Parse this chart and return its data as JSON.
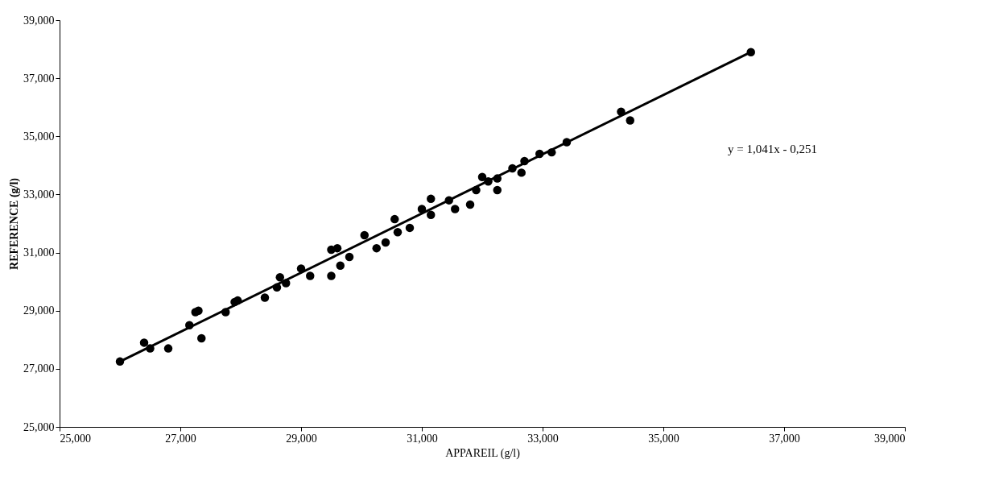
{
  "chart_data": {
    "type": "scatter",
    "xlabel": "APPAREIL (g/l)",
    "ylabel": "REFERENCE (g/l)",
    "annotations": [
      "y = 1,041x - 0,251"
    ],
    "xlim": [
      25000,
      39000
    ],
    "xticks": [
      {
        "value": 25000,
        "label": "25,000"
      },
      {
        "value": 27000,
        "label": "27,000"
      },
      {
        "value": 29000,
        "label": "29,000"
      },
      {
        "value": 31000,
        "label": "31,000"
      },
      {
        "value": 33000,
        "label": "33,000"
      },
      {
        "value": 35000,
        "label": "35,000"
      },
      {
        "value": 37000,
        "label": "37,000"
      },
      {
        "value": 39000,
        "label": "39,000"
      }
    ],
    "ylim": [
      25000,
      39000
    ],
    "yticks": [
      {
        "value": 25000,
        "label": "25,000"
      },
      {
        "value": 27000,
        "label": "27,000"
      },
      {
        "value": 29000,
        "label": "29,000"
      },
      {
        "value": 31000,
        "label": "31,000"
      },
      {
        "value": 33000,
        "label": "33,000"
      },
      {
        "value": 35000,
        "label": "35,000"
      },
      {
        "value": 37000,
        "label": "37,000"
      },
      {
        "value": 39000,
        "label": "39,000"
      }
    ],
    "grid": false,
    "x": [
      26000,
      26400,
      26500,
      26800,
      27150,
      27250,
      27300,
      27350,
      27750,
      27900,
      27950,
      28400,
      28600,
      28750,
      28650,
      29000,
      29150,
      29500,
      29650,
      29800,
      29500,
      29600,
      30050,
      30250,
      30400,
      30550,
      30600,
      30800,
      31000,
      31150,
      31150,
      31450,
      31550,
      31800,
      31900,
      32000,
      32100,
      32250,
      32250,
      32500,
      32650,
      32700,
      32950,
      33150,
      33400,
      34300,
      34450,
      36450
    ],
    "series": [
      {
        "color": "#000000",
        "marker": "circle",
        "values": [
          27250,
          27900,
          27700,
          27700,
          28500,
          28950,
          29000,
          28050,
          28950,
          29300,
          29350,
          29450,
          29800,
          29950,
          30150,
          30450,
          30200,
          30200,
          30550,
          30850,
          31100,
          31150,
          31600,
          31150,
          31350,
          32150,
          31700,
          31850,
          32500,
          32300,
          32850,
          32800,
          32500,
          32650,
          33150,
          33600,
          33450,
          33550,
          33150,
          33900,
          33750,
          34150,
          34400,
          34450,
          34800,
          35850,
          35550,
          37900
        ]
      },
      {
        "type": "line",
        "color": "#000000",
        "line_style": "solid",
        "x": [
          26000,
          36450
        ],
        "values": [
          27250,
          37900
        ]
      }
    ]
  }
}
